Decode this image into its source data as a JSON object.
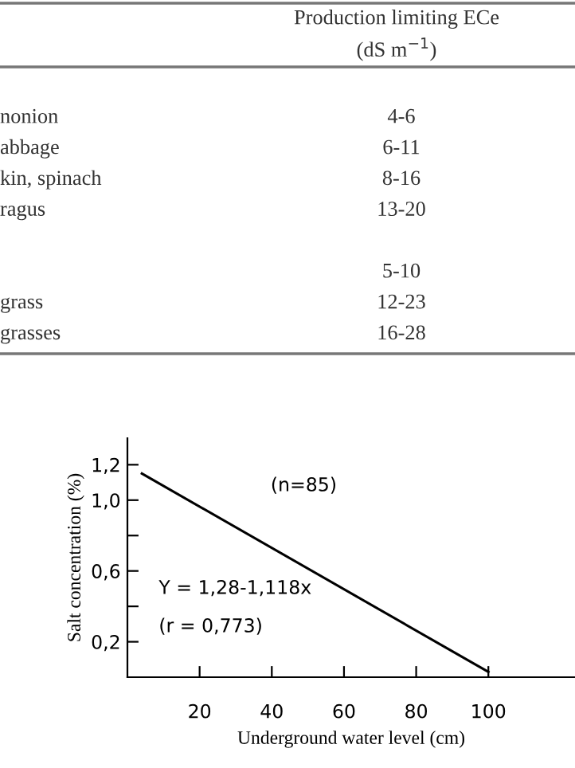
{
  "chart_data": [
    {
      "type": "other",
      "title": "Production limiting ECe",
      "subtitle": "(dS m$^{−1}$)",
      "categories": [
        "nonion",
        "abbage",
        "kin, spinach",
        "ragus",
        null,
        null,
        "grass",
        "grasses"
      ],
      "cell_labels": [
        [
          "4-6"
        ],
        [
          "6-11"
        ],
        [
          "8-16"
        ],
        [
          "13-20"
        ],
        [
          null
        ],
        [
          "5-10"
        ],
        [
          "12-23"
        ],
        [
          "16-28"
        ]
      ]
    },
    {
      "type": "line",
      "xlabel": "Underground water level (cm)",
      "ylabel": "Salt concentration (%)",
      "series": [
        {
          "color": "#000000",
          "x": [
            4,
            100
          ],
          "values": [
            1.15,
            0.03
          ]
        }
      ],
      "xlim": [
        0,
        124
      ],
      "xticks": [
        20,
        40,
        60,
        80,
        100
      ],
      "ylim": [
        0,
        1.35
      ],
      "yticks": [
        {
          "value": 0.2,
          "label": "0,2"
        },
        {
          "value": 0.4,
          "label": null
        },
        {
          "value": 0.6,
          "label": "0,6"
        },
        {
          "value": 0.8,
          "label": null
        },
        {
          "value": 1.0,
          "label": "1,0"
        },
        {
          "value": 1.2,
          "label": "1,2"
        }
      ],
      "annotations": [
        "(n=85)",
        "Y = 1,28-1,118x",
        "(r = 0,773)"
      ],
      "grid": false,
      "marker": "none",
      "line_style": "solid"
    }
  ]
}
